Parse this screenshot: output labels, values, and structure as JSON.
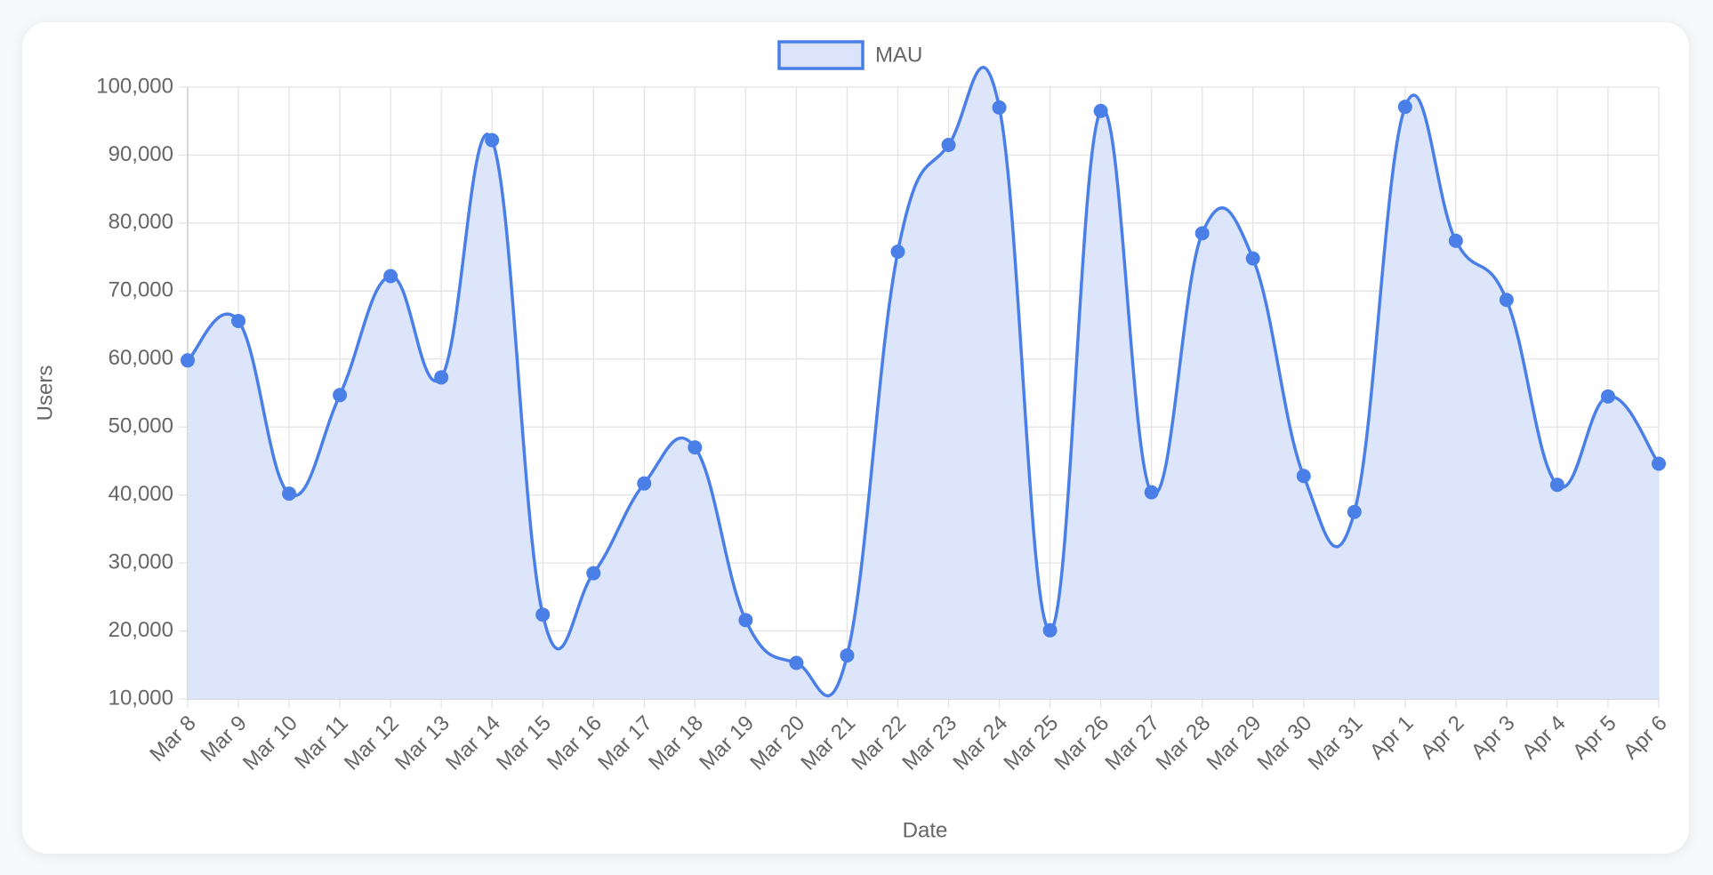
{
  "chart_data": {
    "type": "line",
    "x_label": "Date",
    "y_label": "Users",
    "categories": [
      "Mar 8",
      "Mar 9",
      "Mar 10",
      "Mar 11",
      "Mar 12",
      "Mar 13",
      "Mar 14",
      "Mar 15",
      "Mar 16",
      "Mar 17",
      "Mar 18",
      "Mar 19",
      "Mar 20",
      "Mar 21",
      "Mar 22",
      "Mar 23",
      "Mar 24",
      "Mar 25",
      "Mar 26",
      "Mar 27",
      "Mar 28",
      "Mar 29",
      "Mar 30",
      "Mar 31",
      "Apr 1",
      "Apr 2",
      "Apr 3",
      "Apr 4",
      "Apr 5",
      "Apr 6"
    ],
    "series": [
      {
        "name": "MAU",
        "color": "#4a7fe8",
        "fill_color": "#dbe4fb",
        "values": [
          59800,
          65600,
          40200,
          54700,
          72200,
          57300,
          92200,
          22400,
          28500,
          41700,
          47000,
          21600,
          15300,
          16400,
          75800,
          91500,
          97000,
          20100,
          96500,
          40400,
          78500,
          74800,
          42800,
          37500,
          97100,
          77400,
          68700,
          41500,
          54500,
          44600
        ]
      }
    ],
    "ylim": [
      10000,
      100000
    ],
    "yticks": [
      {
        "value": 10000,
        "label": "10,000"
      },
      {
        "value": 20000,
        "label": "20,000"
      },
      {
        "value": 30000,
        "label": "30,000"
      },
      {
        "value": 40000,
        "label": "40,000"
      },
      {
        "value": 50000,
        "label": "50,000"
      },
      {
        "value": 60000,
        "label": "60,000"
      },
      {
        "value": 70000,
        "label": "70,000"
      },
      {
        "value": 80000,
        "label": "80,000"
      },
      {
        "value": 90000,
        "label": "90,000"
      },
      {
        "value": 100000,
        "label": "100,000"
      }
    ],
    "grid": true,
    "legend": "top"
  }
}
